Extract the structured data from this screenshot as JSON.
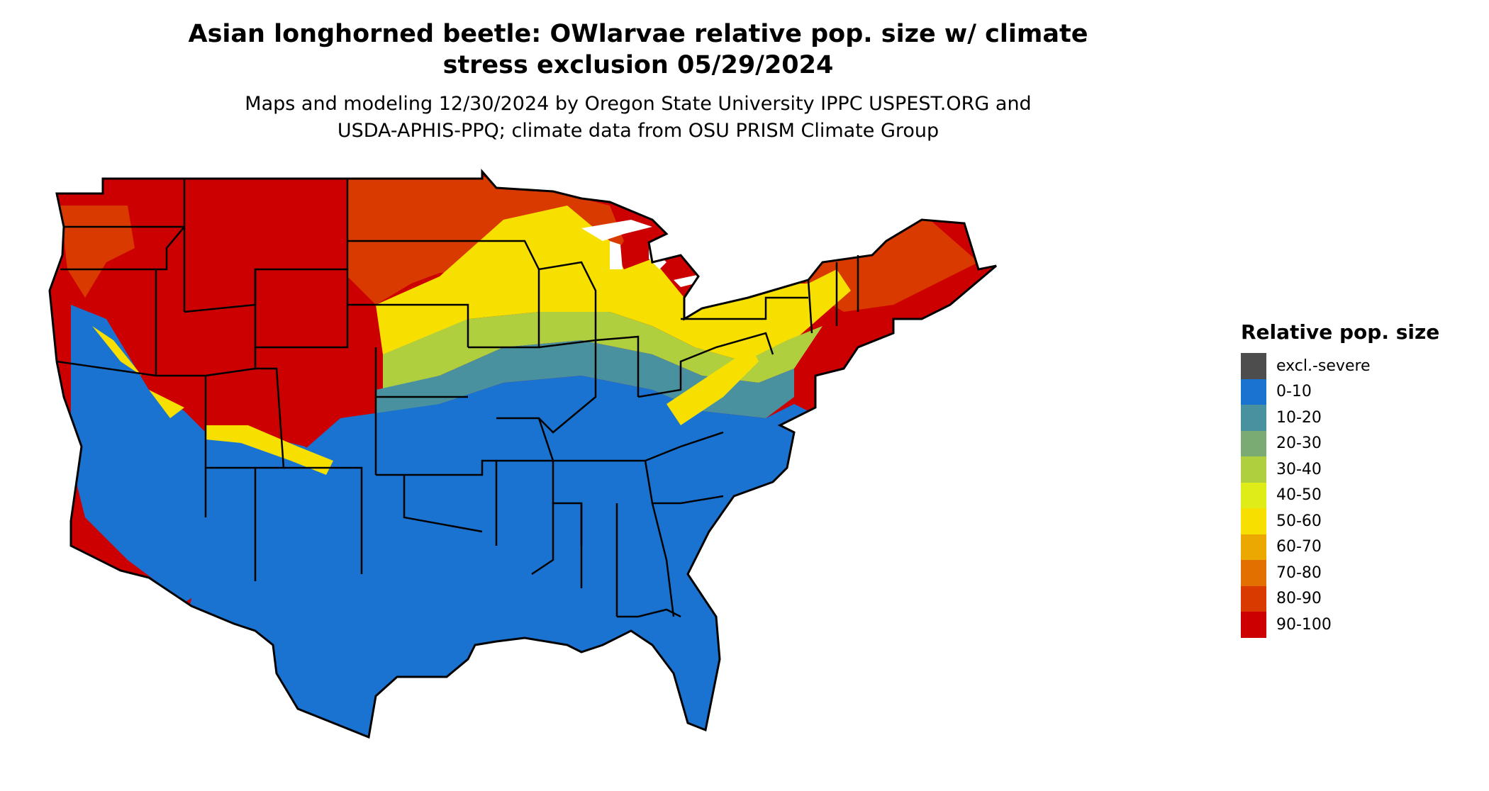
{
  "title": {
    "line1": "Asian longhorned beetle: OWlarvae relative pop. size w/ climate",
    "line2": "stress exclusion 05/29/2024"
  },
  "subtitle": {
    "line1": "Maps and modeling 12/30/2024 by Oregon State University IPPC USPEST.ORG and",
    "line2": "USDA-APHIS-PPQ; climate data from OSU PRISM Climate Group"
  },
  "legend": {
    "title": "Relative pop. size",
    "items": [
      {
        "label": "excl.-severe",
        "color": "#4d4d4d"
      },
      {
        "label": "0-10",
        "color": "#1a73d1"
      },
      {
        "label": "10-20",
        "color": "#4a919f"
      },
      {
        "label": "20-30",
        "color": "#7aab72"
      },
      {
        "label": "30-40",
        "color": "#b0cf3e"
      },
      {
        "label": "40-50",
        "color": "#e0ec18"
      },
      {
        "label": "50-60",
        "color": "#f7e000"
      },
      {
        "label": "60-70",
        "color": "#eba800"
      },
      {
        "label": "70-80",
        "color": "#e27000"
      },
      {
        "label": "80-90",
        "color": "#d93a00"
      },
      {
        "label": "90-100",
        "color": "#cc0000"
      }
    ]
  },
  "map": {
    "region": "Contiguous United States",
    "border_color": "#000000"
  }
}
